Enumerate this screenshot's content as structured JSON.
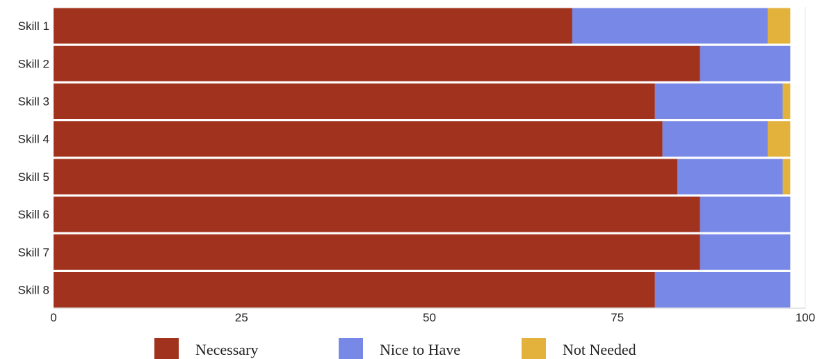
{
  "chart_data": {
    "type": "bar",
    "orientation": "horizontal",
    "stacked": true,
    "categories": [
      "Skill 1",
      "Skill 2",
      "Skill 3",
      "Skill 4",
      "Skill 5",
      "Skill 6",
      "Skill 7",
      "Skill 8"
    ],
    "series": [
      {
        "name": "Necessary",
        "color": "#a0321e",
        "values": [
          69,
          86,
          80,
          81,
          83,
          86,
          86,
          80
        ]
      },
      {
        "name": "Nice to Have",
        "color": "#7788e6",
        "values": [
          26,
          12,
          17,
          14,
          14,
          12,
          12,
          18
        ]
      },
      {
        "name": "Not Needed",
        "color": "#e3b23c",
        "values": [
          3,
          0,
          1,
          3,
          1,
          0,
          0,
          0
        ]
      }
    ],
    "xlim": [
      0,
      100
    ],
    "xticks": [
      "0",
      "25",
      "50",
      "75",
      "100"
    ],
    "title": "",
    "xlabel": "",
    "ylabel": "",
    "grid": false,
    "legend_position": "bottom"
  }
}
